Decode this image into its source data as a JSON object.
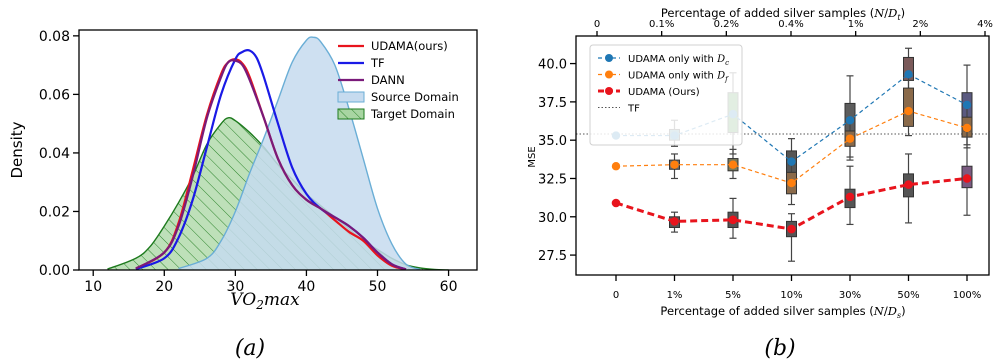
{
  "chart_data": [
    {
      "type": "area",
      "panel_label": "(a)",
      "xlabel": "VO₂max",
      "ylabel": "Density",
      "xlim": [
        8,
        64
      ],
      "ylim": [
        0,
        0.082
      ],
      "xticks": [
        10,
        20,
        30,
        40,
        50,
        60
      ],
      "yticks": [
        0.0,
        0.02,
        0.04,
        0.06,
        0.08
      ],
      "ytick_labels": [
        "0.00",
        "0.02",
        "0.04",
        "0.06",
        "0.08"
      ],
      "legend_position": "top-right",
      "series": [
        {
          "name": "UDAMA(ours)",
          "kind": "line",
          "color": "#e8141d",
          "x": [
            16,
            20,
            22,
            24,
            26,
            28,
            29,
            30,
            31,
            32,
            34,
            36,
            38,
            40,
            42,
            44,
            46,
            48,
            50,
            52,
            54
          ],
          "y": [
            0.0005,
            0.006,
            0.016,
            0.034,
            0.053,
            0.067,
            0.071,
            0.072,
            0.0705,
            0.066,
            0.052,
            0.038,
            0.029,
            0.024,
            0.021,
            0.017,
            0.013,
            0.01,
            0.005,
            0.0015,
            0.0002
          ]
        },
        {
          "name": "TF",
          "kind": "line",
          "color": "#1a1ae6",
          "x": [
            16,
            20,
            22,
            24,
            26,
            28,
            30,
            31,
            32,
            33,
            34,
            36,
            38,
            40,
            42,
            44,
            46,
            48,
            50,
            52,
            54
          ],
          "y": [
            0.0003,
            0.004,
            0.011,
            0.024,
            0.042,
            0.06,
            0.072,
            0.0745,
            0.075,
            0.0725,
            0.066,
            0.05,
            0.035,
            0.026,
            0.021,
            0.018,
            0.015,
            0.011,
            0.006,
            0.002,
            0.0002
          ]
        },
        {
          "name": "DANN",
          "kind": "line",
          "color": "#7a1a7a",
          "x": [
            16,
            20,
            22,
            24,
            26,
            28,
            29,
            30,
            31,
            32,
            34,
            36,
            38,
            40,
            42,
            44,
            46,
            48,
            50,
            52,
            54
          ],
          "y": [
            0.0005,
            0.006,
            0.015,
            0.032,
            0.052,
            0.066,
            0.071,
            0.0715,
            0.07,
            0.065,
            0.052,
            0.038,
            0.029,
            0.024,
            0.021,
            0.018,
            0.015,
            0.011,
            0.006,
            0.002,
            0.0002
          ]
        },
        {
          "name": "Source Domain",
          "kind": "area",
          "color": "#6aaed6",
          "fill": "#c6dbef",
          "x": [
            22,
            26,
            28,
            30,
            32,
            34,
            36,
            38,
            40,
            41,
            42,
            44,
            46,
            48,
            50,
            52,
            54,
            56
          ],
          "y": [
            0.0005,
            0.004,
            0.01,
            0.02,
            0.033,
            0.045,
            0.058,
            0.071,
            0.0785,
            0.0795,
            0.078,
            0.07,
            0.055,
            0.038,
            0.021,
            0.009,
            0.002,
            0.0002
          ]
        },
        {
          "name": "Target Domain",
          "kind": "area-hatched",
          "color": "#1d7a1d",
          "fill": "#a8d5a2",
          "x": [
            12,
            16,
            18,
            20,
            22,
            24,
            26,
            28,
            29,
            30,
            32,
            34,
            36,
            38,
            40,
            42,
            44,
            46,
            48,
            50,
            52,
            54,
            56,
            58,
            60
          ],
          "y": [
            0.0003,
            0.004,
            0.008,
            0.015,
            0.023,
            0.032,
            0.043,
            0.05,
            0.052,
            0.051,
            0.047,
            0.042,
            0.036,
            0.031,
            0.026,
            0.022,
            0.018,
            0.014,
            0.01,
            0.007,
            0.004,
            0.0018,
            0.0007,
            0.0002,
            0.0
          ]
        }
      ]
    },
    {
      "type": "line",
      "panel_label": "(b)",
      "xlabel": "Percentage of added silver samples (N/Dₛ)",
      "top_xlabel": "Percentage of added silver samples (N/Dₜ)",
      "ylabel": "MSE",
      "categories": [
        "0",
        "1%",
        "5%",
        "10%",
        "30%",
        "50%",
        "100%"
      ],
      "top_ticks": [
        "0",
        "0.1%",
        "0.2%",
        "0.4%",
        "1%",
        "2%",
        "4%"
      ],
      "ylim": [
        26.2,
        41.8
      ],
      "yticks": [
        27.5,
        30.0,
        32.5,
        35.0,
        37.5,
        40.0
      ],
      "ytick_labels": [
        "27.5",
        "30.0",
        "32.5",
        "35.0",
        "37.5",
        "40.0"
      ],
      "reference_line": {
        "name": "TF",
        "y": 35.4
      },
      "legend_position": "top-left",
      "series": [
        {
          "name": "UDAMA only with D_c",
          "name_label": "UDAMA only with ",
          "name_sub": "c",
          "color": "#1f77b4",
          "values": [
            35.3,
            35.3,
            36.7,
            33.6,
            36.3,
            39.3,
            37.3
          ],
          "boxes": [
            null,
            {
              "min": 34.6,
              "q1": 35.0,
              "q3": 35.7,
              "max": 36.3,
              "fill": "#4c8a99"
            },
            {
              "min": 34.1,
              "q1": 35.5,
              "q3": 38.1,
              "max": 39.4,
              "fill": "#3f8a3f"
            },
            {
              "min": 31.8,
              "q1": 32.7,
              "q3": 34.3,
              "max": 35.1,
              "fill": "#555555"
            },
            {
              "min": 33.7,
              "q1": 34.8,
              "q3": 37.4,
              "max": 39.2,
              "fill": "#5d5d5d"
            },
            {
              "min": 38.2,
              "q1": 38.9,
              "q3": 40.4,
              "max": 41.0,
              "fill": "#7a5a5a"
            },
            {
              "min": 34.7,
              "q1": 35.8,
              "q3": 38.1,
              "max": 39.9,
              "fill": "#5a5a80"
            }
          ]
        },
        {
          "name": "UDAMA only with D_f",
          "name_label": "UDAMA only with ",
          "name_sub": "f",
          "color": "#ff7f0e",
          "values": [
            33.3,
            33.4,
            33.4,
            32.2,
            35.1,
            36.9,
            35.8
          ],
          "boxes": [
            null,
            {
              "min": 32.5,
              "q1": 33.1,
              "q3": 33.7,
              "max": 34.1,
              "fill": "#6a6a6a"
            },
            {
              "min": 32.5,
              "q1": 33.0,
              "q3": 33.8,
              "max": 34.4,
              "fill": "#7a7a5a"
            },
            {
              "min": 30.8,
              "q1": 31.5,
              "q3": 32.9,
              "max": 33.4,
              "fill": "#8a6a4a"
            },
            {
              "min": 33.9,
              "q1": 34.6,
              "q3": 35.6,
              "max": 36.4,
              "fill": "#8a6a4a"
            },
            {
              "min": 35.3,
              "q1": 35.9,
              "q3": 38.4,
              "max": 39.4,
              "fill": "#8a6a4a"
            },
            {
              "min": 34.5,
              "q1": 35.2,
              "q3": 36.5,
              "max": 37.2,
              "fill": "#8a6a4a"
            }
          ]
        },
        {
          "name": "UDAMA (Ours)",
          "color": "#e8141d",
          "values": [
            30.9,
            29.7,
            29.8,
            29.2,
            31.3,
            32.1,
            32.5
          ],
          "boxes": [
            null,
            {
              "min": 29.0,
              "q1": 29.3,
              "q3": 30.0,
              "max": 30.3,
              "fill": "#555555"
            },
            {
              "min": 28.6,
              "q1": 29.3,
              "q3": 30.3,
              "max": 31.2,
              "fill": "#555555"
            },
            {
              "min": 27.1,
              "q1": 28.7,
              "q3": 29.7,
              "max": 30.2,
              "fill": "#555555"
            },
            {
              "min": 29.5,
              "q1": 30.6,
              "q3": 31.8,
              "max": 33.3,
              "fill": "#555555"
            },
            {
              "min": 29.6,
              "q1": 31.3,
              "q3": 32.8,
              "max": 34.1,
              "fill": "#555555"
            },
            {
              "min": 30.1,
              "q1": 31.9,
              "q3": 33.3,
              "max": 35.6,
              "fill": "#7a5a80"
            }
          ]
        }
      ]
    }
  ]
}
